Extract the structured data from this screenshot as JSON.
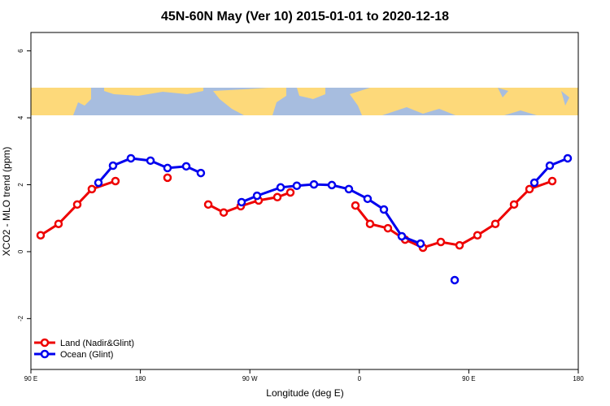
{
  "chart_data": {
    "type": "line",
    "title": "45N-60N May (Ver 10)   2015-01-01 to 2020-12-18",
    "x_label": "Longitude (deg E)",
    "y_label": "XCO2 - MLO trend (ppm)",
    "xlim": [
      90,
      540
    ],
    "ylim": [
      -3.52,
      6.55
    ],
    "xticks": [
      {
        "value": 90,
        "label": "90 E"
      },
      180,
      {
        "value": 270,
        "label": "90 W"
      },
      {
        "value": 360,
        "label": "0"
      },
      {
        "value": 450,
        "label": "90 E"
      },
      {
        "value": 540,
        "label": "180"
      }
    ],
    "yticks": [
      -2,
      0,
      2,
      4,
      6
    ],
    "legend": "bottom-left",
    "series": [
      {
        "name": "Land (Nadir&Glint)",
        "color": "#ee0000",
        "x": [
          98,
          112.7,
          128.1,
          140.1,
          159.5,
          181,
          202.3,
          219,
          235.8,
          248.5,
          262.5,
          277.2,
          292.6,
          303.3,
          330,
          356.8,
          368.8,
          383.5,
          397.6,
          412.3,
          427.0,
          442.4,
          457.1,
          471.8,
          487.2,
          499.9,
          518.6
        ],
        "values": [
          0.49,
          0.83,
          1.41,
          1.87,
          2.11,
          null,
          2.21,
          null,
          1.41,
          1.17,
          1.36,
          1.53,
          1.63,
          1.77,
          null,
          1.38,
          0.83,
          0.7,
          0.36,
          0.12,
          0.29,
          0.19,
          0.49,
          0.83,
          1.41,
          1.87,
          2.11
        ]
      },
      {
        "name": "Ocean (Glint)",
        "color": "#0000ee",
        "x": [
          145.5,
          157.5,
          172.2,
          188.3,
          202.3,
          217.7,
          229.7,
          246,
          263.2,
          275.9,
          295.3,
          308.6,
          322.7,
          337.4,
          351.4,
          366.8,
          380.2,
          394.9,
          410.3,
          424,
          438.4,
          470,
          503.9,
          516.6,
          531.3
        ],
        "values": [
          2.06,
          2.57,
          2.79,
          2.72,
          2.5,
          2.55,
          2.35,
          null,
          1.48,
          1.67,
          1.92,
          1.97,
          2.01,
          1.99,
          1.87,
          1.58,
          1.26,
          0.46,
          0.24,
          null,
          -0.85,
          null,
          2.06,
          2.57,
          2.79
        ]
      }
    ]
  }
}
